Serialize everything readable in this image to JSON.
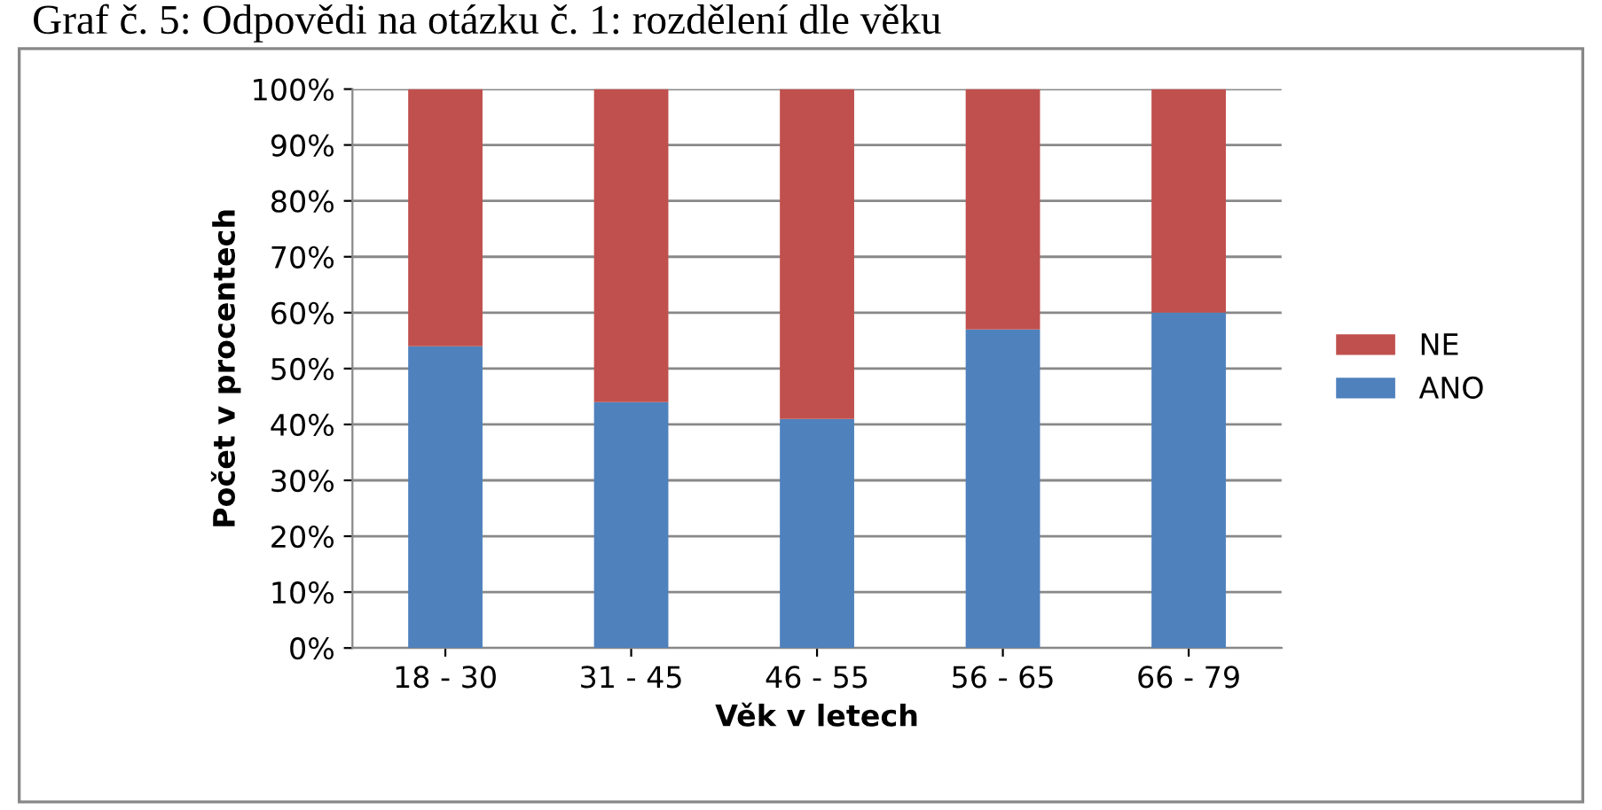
{
  "chart_data": {
    "type": "bar",
    "title": "Graf č. 5: Odpovědi na otázku č. 1: rozdělení dle věku",
    "xlabel": "Věk v letech",
    "ylabel": "Počet v procentech",
    "categories": [
      "18 - 30",
      "31 - 45",
      "46 - 55",
      "56 - 65",
      "66 - 79"
    ],
    "series": [
      {
        "name": "ANO",
        "color": "#4f81bd",
        "values": [
          54,
          44,
          41,
          57,
          60
        ]
      },
      {
        "name": "NE",
        "color": "#c0504d",
        "values": [
          46,
          56,
          59,
          43,
          40
        ]
      }
    ],
    "stacked": true,
    "ylim": [
      0,
      100
    ],
    "yticks": [
      {
        "value": 0,
        "label": "0%"
      },
      {
        "value": 10,
        "label": "10%"
      },
      {
        "value": 20,
        "label": "20%"
      },
      {
        "value": 30,
        "label": "30%"
      },
      {
        "value": 40,
        "label": "40%"
      },
      {
        "value": 50,
        "label": "50%"
      },
      {
        "value": 60,
        "label": "60%"
      },
      {
        "value": 70,
        "label": "70%"
      },
      {
        "value": 80,
        "label": "80%"
      },
      {
        "value": 90,
        "label": "90%"
      },
      {
        "value": 100,
        "label": "100%"
      }
    ],
    "grid": "y",
    "legend": "right"
  }
}
